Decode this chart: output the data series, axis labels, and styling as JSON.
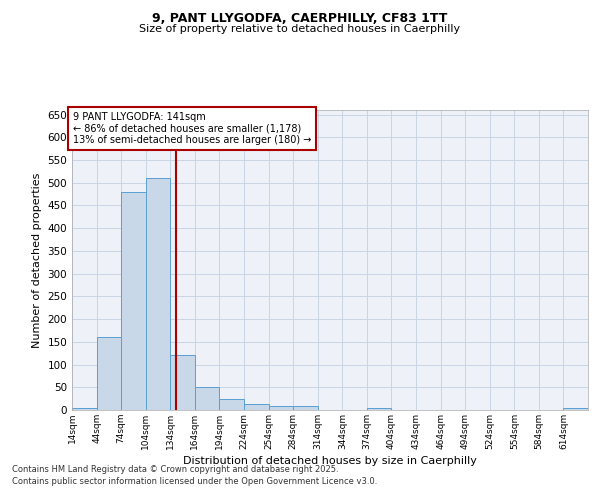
{
  "title1": "9, PANT LLYGODFA, CAERPHILLY, CF83 1TT",
  "title2": "Size of property relative to detached houses in Caerphilly",
  "xlabel": "Distribution of detached houses by size in Caerphilly",
  "ylabel": "Number of detached properties",
  "annotation_line1": "9 PANT LLYGODFA: 141sqm",
  "annotation_line2": "← 86% of detached houses are smaller (1,178)",
  "annotation_line3": "13% of semi-detached houses are larger (180) →",
  "bar_color": "#c8d8e8",
  "bar_edge_color": "#5a9fd4",
  "vline_color": "#aa0000",
  "vline_x": 141,
  "categories": [
    14,
    44,
    74,
    104,
    134,
    164,
    194,
    224,
    254,
    284,
    314,
    344,
    374,
    404,
    434,
    464,
    494,
    524,
    554,
    584,
    614
  ],
  "values": [
    4,
    160,
    480,
    510,
    120,
    50,
    25,
    13,
    9,
    8,
    0,
    0,
    5,
    0,
    0,
    0,
    0,
    0,
    0,
    0,
    4
  ],
  "ylim": [
    0,
    660
  ],
  "yticks": [
    0,
    50,
    100,
    150,
    200,
    250,
    300,
    350,
    400,
    450,
    500,
    550,
    600,
    650
  ],
  "bin_width": 30,
  "fig_background": "#ffffff",
  "plot_background": "#eef2f8",
  "grid_color": "#c8d4e4",
  "footnote1": "Contains HM Land Registry data © Crown copyright and database right 2025.",
  "footnote2": "Contains public sector information licensed under the Open Government Licence v3.0."
}
